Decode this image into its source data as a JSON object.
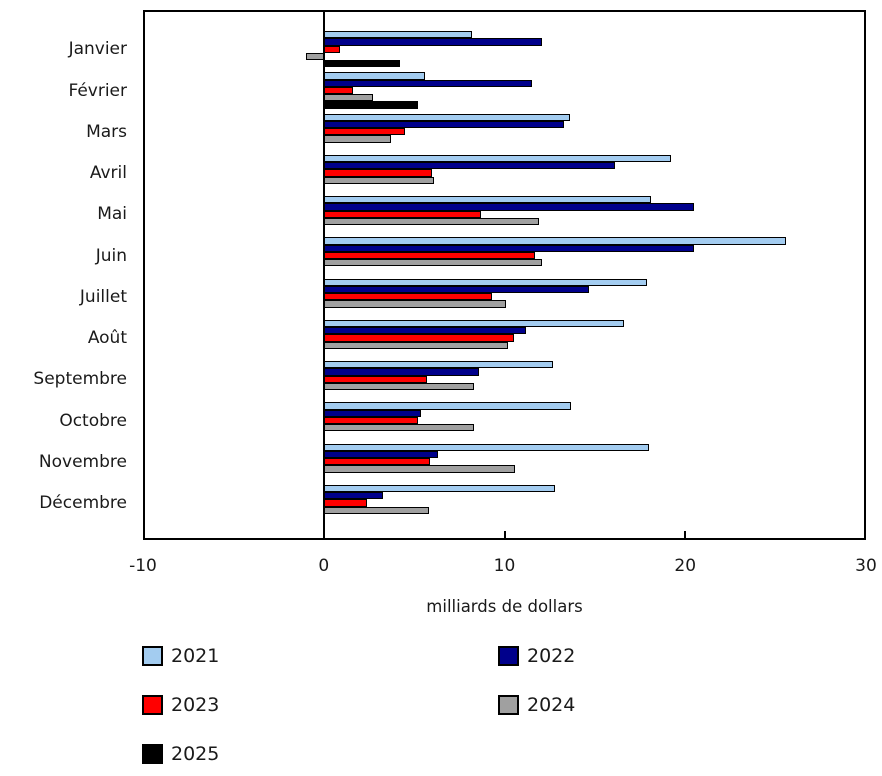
{
  "chart_data": {
    "type": "bar",
    "orientation": "horizontal",
    "title": "",
    "xlabel": "milliards de dollars",
    "ylabel": "",
    "xlim": [
      -10,
      30
    ],
    "xticks": [
      -10,
      0,
      10,
      20,
      30
    ],
    "xtick_labels": [
      "-10",
      "0",
      "10",
      "20",
      "30"
    ],
    "grid": false,
    "legend_position": "bottom",
    "categories": [
      "Janvier",
      "Février",
      "Mars",
      "Avril",
      "Mai",
      "Juin",
      "Juillet",
      "Août",
      "Septembre",
      "Octobre",
      "Novembre",
      "Décembre"
    ],
    "series": [
      {
        "name": "2021",
        "color": "#A3CCF0",
        "values": [
          8.2,
          5.6,
          13.6,
          19.2,
          18.1,
          25.6,
          17.9,
          16.6,
          12.7,
          13.7,
          18.0,
          12.8
        ]
      },
      {
        "name": "2022",
        "color": "#00008B",
        "values": [
          12.1,
          11.5,
          13.3,
          16.1,
          20.5,
          20.5,
          14.7,
          11.2,
          8.6,
          5.4,
          6.3,
          3.3
        ]
      },
      {
        "name": "2023",
        "color": "#FF0000",
        "values": [
          0.9,
          1.6,
          4.5,
          6.0,
          8.7,
          11.7,
          9.3,
          10.5,
          5.7,
          5.2,
          5.9,
          2.4
        ]
      },
      {
        "name": "2024",
        "color": "#A0A0A0",
        "values": [
          -1.0,
          2.7,
          3.7,
          6.1,
          11.9,
          12.1,
          10.1,
          10.2,
          8.3,
          8.3,
          10.6,
          5.8
        ]
      },
      {
        "name": "2025",
        "color": "#000000",
        "values": [
          4.2,
          5.2,
          null,
          null,
          null,
          null,
          null,
          null,
          null,
          null,
          null,
          null
        ]
      }
    ],
    "legend": [
      {
        "label": "2021",
        "color": "#A3CCF0"
      },
      {
        "label": "2022",
        "color": "#00008B"
      },
      {
        "label": "2023",
        "color": "#FF0000"
      },
      {
        "label": "2024",
        "color": "#A0A0A0"
      },
      {
        "label": "2025",
        "color": "#000000"
      }
    ],
    "axis_color": "#000000",
    "text_color": "#1a1a1a"
  }
}
